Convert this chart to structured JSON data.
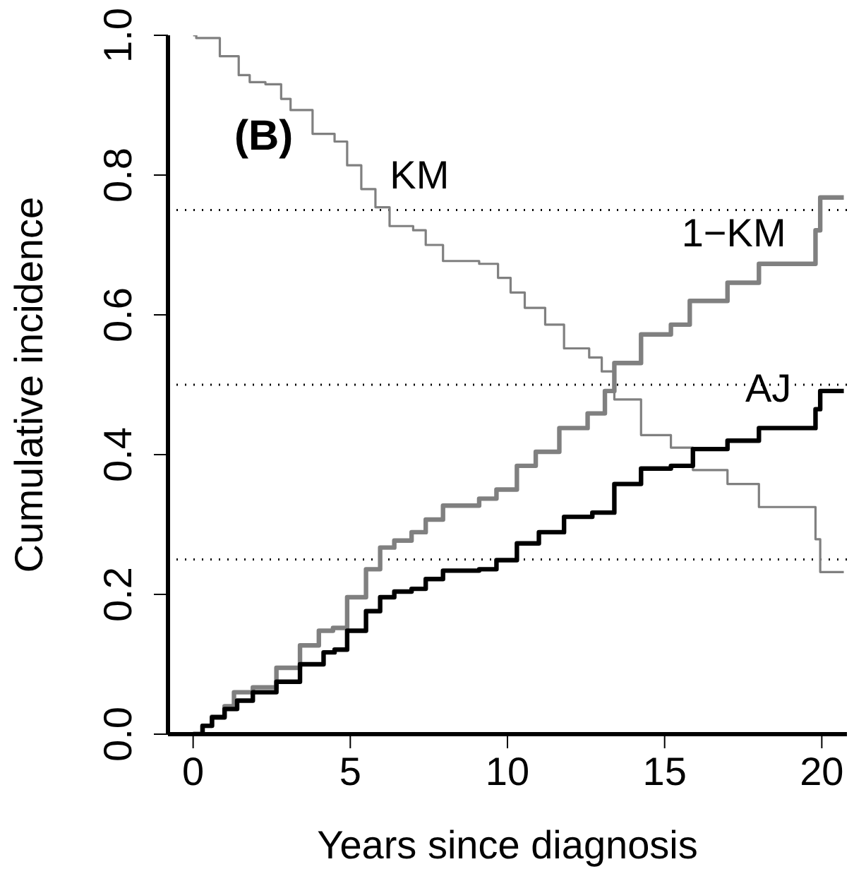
{
  "chart_data": {
    "type": "step",
    "xlabel": "Years since diagnosis",
    "ylabel": "Cumulative incidence",
    "xlim": [
      -0.8,
      20.8
    ],
    "xticks": [
      0,
      5,
      10,
      15,
      20
    ],
    "ylim": [
      0,
      1
    ],
    "yticks": [
      {
        "value": 0,
        "label": "0.0"
      },
      0.2,
      0.4,
      0.6,
      0.8,
      {
        "value": 1,
        "label": "1.0"
      }
    ],
    "grid": false,
    "legend": false,
    "marker": "none",
    "line_style": "solid",
    "series": [
      {
        "name": "KM",
        "color": "#808080",
        "x": [
          0,
          0.1,
          0.85,
          1.45,
          1.8,
          2.3,
          2.8,
          3.1,
          3.8,
          4.5,
          4.9,
          5.35,
          5.8,
          6.25,
          7.0,
          7.4,
          7.95,
          9.1,
          9.7,
          10.1,
          10.55,
          11.2,
          11.8,
          12.6,
          13.0,
          13.4,
          14.25,
          15.2,
          15.9,
          17.0,
          18.0,
          19.8,
          19.95,
          20.7
        ],
        "values": [
          1,
          0.996,
          0.97,
          0.943,
          0.933,
          0.93,
          0.909,
          0.893,
          0.859,
          0.848,
          0.814,
          0.78,
          0.754,
          0.727,
          0.721,
          0.7,
          0.677,
          0.673,
          0.653,
          0.632,
          0.61,
          0.586,
          0.552,
          0.539,
          0.519,
          0.479,
          0.428,
          0.41,
          0.378,
          0.358,
          0.325,
          0.279,
          0.232,
          0.232
        ]
      },
      {
        "name": "1−KM",
        "color": "#808080",
        "x": [
          0,
          0.3,
          0.6,
          1.0,
          1.3,
          1.9,
          2.65,
          3.4,
          4.0,
          4.45,
          4.9,
          5.5,
          5.95,
          6.4,
          6.95,
          7.4,
          7.95,
          9.1,
          9.65,
          10.3,
          10.9,
          11.65,
          12.55,
          13.1,
          13.4,
          14.25,
          15.2,
          15.8,
          17.0,
          18.0,
          19.8,
          19.95,
          20.7
        ],
        "values": [
          0,
          0.012,
          0.025,
          0.04,
          0.06,
          0.067,
          0.095,
          0.127,
          0.148,
          0.152,
          0.196,
          0.236,
          0.267,
          0.277,
          0.289,
          0.307,
          0.327,
          0.337,
          0.35,
          0.384,
          0.404,
          0.438,
          0.459,
          0.491,
          0.531,
          0.572,
          0.586,
          0.62,
          0.646,
          0.673,
          0.721,
          0.768,
          0.768
        ]
      },
      {
        "name": "AJ",
        "color": "#000000",
        "x": [
          0,
          0.3,
          0.6,
          1.0,
          1.4,
          1.9,
          2.65,
          3.4,
          4.15,
          4.5,
          4.9,
          5.5,
          5.95,
          6.4,
          6.95,
          7.4,
          7.95,
          9.1,
          9.65,
          10.3,
          11.0,
          11.8,
          12.7,
          13.4,
          14.25,
          15.2,
          15.9,
          17.0,
          18.0,
          19.8,
          19.95,
          20.7
        ],
        "values": [
          0,
          0.012,
          0.024,
          0.036,
          0.048,
          0.06,
          0.075,
          0.1,
          0.117,
          0.121,
          0.148,
          0.176,
          0.196,
          0.204,
          0.208,
          0.222,
          0.234,
          0.236,
          0.249,
          0.273,
          0.289,
          0.311,
          0.317,
          0.358,
          0.38,
          0.384,
          0.408,
          0.42,
          0.438,
          0.465,
          0.491,
          0.491
        ]
      }
    ],
    "ref_lines": [
      {
        "axis": "y",
        "value": 0.75,
        "line_style": "dotted"
      },
      {
        "axis": "y",
        "value": 0.5,
        "line_style": "dotted"
      },
      {
        "axis": "y",
        "value": 0.25,
        "line_style": "dotted"
      }
    ],
    "annotations": [
      "(B)"
    ]
  }
}
